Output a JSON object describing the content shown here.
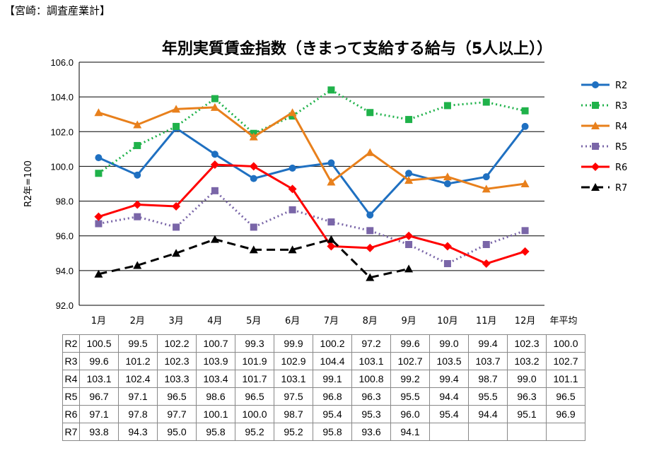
{
  "header": "【宮崎：調査産業計】",
  "chart_data": {
    "type": "line",
    "title": "年別実質賃金指数（きまって支給する給与（5人以上））",
    "ylabel": "R2年=100",
    "ylim": [
      92,
      106
    ],
    "yticks": [
      "92.0",
      "94.0",
      "96.0",
      "98.0",
      "100.0",
      "102.0",
      "104.0",
      "106.0"
    ],
    "categories": [
      "1月",
      "2月",
      "3月",
      "4月",
      "5月",
      "6月",
      "7月",
      "8月",
      "9月",
      "10月",
      "11月",
      "12月"
    ],
    "table_extra_column": "年平均",
    "grid": true,
    "legend": "right",
    "series": [
      {
        "name": "R2",
        "color": "#1f70c1",
        "marker": "circle",
        "dash": "solid",
        "values": [
          100.5,
          99.5,
          102.2,
          100.7,
          99.3,
          99.9,
          100.2,
          97.2,
          99.6,
          99.0,
          99.4,
          102.3
        ],
        "average": "100.0"
      },
      {
        "name": "R3",
        "color": "#1fb24a",
        "marker": "square",
        "dash": "dotted",
        "values": [
          99.6,
          101.2,
          102.3,
          103.9,
          101.9,
          102.9,
          104.4,
          103.1,
          102.7,
          103.5,
          103.7,
          103.2
        ],
        "average": "102.7"
      },
      {
        "name": "R4",
        "color": "#e8801c",
        "marker": "triangle",
        "dash": "solid",
        "values": [
          103.1,
          102.4,
          103.3,
          103.4,
          101.7,
          103.1,
          99.1,
          100.8,
          99.2,
          99.4,
          98.7,
          99.0
        ],
        "average": "101.1"
      },
      {
        "name": "R5",
        "color": "#7a66a8",
        "marker": "square",
        "dash": "dotted",
        "values": [
          96.7,
          97.1,
          96.5,
          98.6,
          96.5,
          97.5,
          96.8,
          96.3,
          95.5,
          94.4,
          95.5,
          96.3
        ],
        "average": "96.5"
      },
      {
        "name": "R6",
        "color": "#ff0000",
        "marker": "diamond",
        "dash": "solid",
        "values": [
          97.1,
          97.8,
          97.7,
          100.1,
          100.0,
          98.7,
          95.4,
          95.3,
          96.0,
          95.4,
          94.4,
          95.1
        ],
        "average": "96.9"
      },
      {
        "name": "R7",
        "color": "#000000",
        "marker": "triangle",
        "dash": "dashed",
        "values": [
          93.8,
          94.3,
          95.0,
          95.8,
          95.2,
          95.2,
          95.8,
          93.6,
          94.1,
          null,
          null,
          null
        ],
        "average": ""
      }
    ]
  }
}
